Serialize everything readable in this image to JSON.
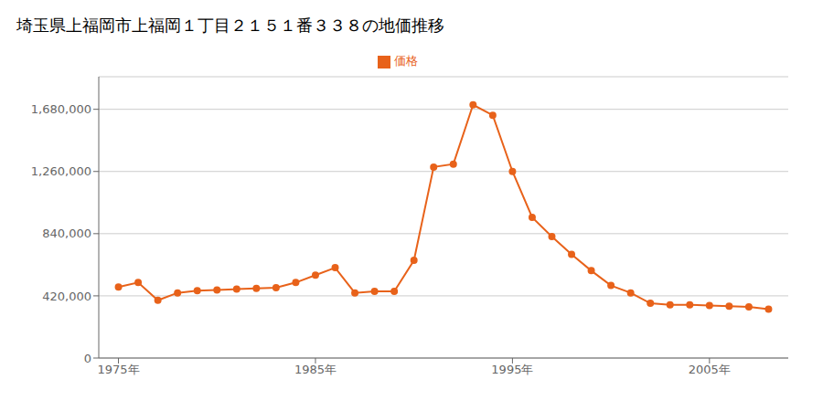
{
  "chart_data": {
    "type": "line",
    "title": "埼玉県上福岡市上福岡１丁目２１５１番３３８の地価推移",
    "x": [
      1975,
      1976,
      1977,
      1978,
      1979,
      1980,
      1981,
      1982,
      1983,
      1984,
      1985,
      1986,
      1987,
      1988,
      1989,
      1990,
      1991,
      1992,
      1993,
      1994,
      1995,
      1996,
      1997,
      1998,
      1999,
      2000,
      2001,
      2002,
      2003,
      2004,
      2005,
      2006,
      2007,
      2008
    ],
    "series": [
      {
        "name": "価格",
        "color": "#e8621a",
        "marker": "circle",
        "values": [
          480000,
          510000,
          390000,
          440000,
          455000,
          460000,
          465000,
          470000,
          475000,
          510000,
          560000,
          610000,
          440000,
          450000,
          450000,
          660000,
          1290000,
          1310000,
          1710000,
          1640000,
          1260000,
          950000,
          820000,
          700000,
          590000,
          490000,
          440000,
          370000,
          360000,
          360000,
          355000,
          350000,
          345000,
          330000
        ]
      }
    ],
    "xlim": [
      1974,
      2009
    ],
    "xticks": [
      {
        "value": 1975,
        "label": "1975年"
      },
      {
        "value": 1985,
        "label": "1985年"
      },
      {
        "value": 1995,
        "label": "1995年"
      },
      {
        "value": 2005,
        "label": "2005年"
      }
    ],
    "ylim": [
      0,
      1900000
    ],
    "yticks": [
      0,
      {
        "value": 420000,
        "label": "420,000"
      },
      {
        "value": 840000,
        "label": "840,000"
      },
      {
        "value": 1260000,
        "label": "1,260,000"
      },
      {
        "value": 1680000,
        "label": "1,680,000"
      }
    ],
    "grid": true,
    "legend": "top"
  }
}
